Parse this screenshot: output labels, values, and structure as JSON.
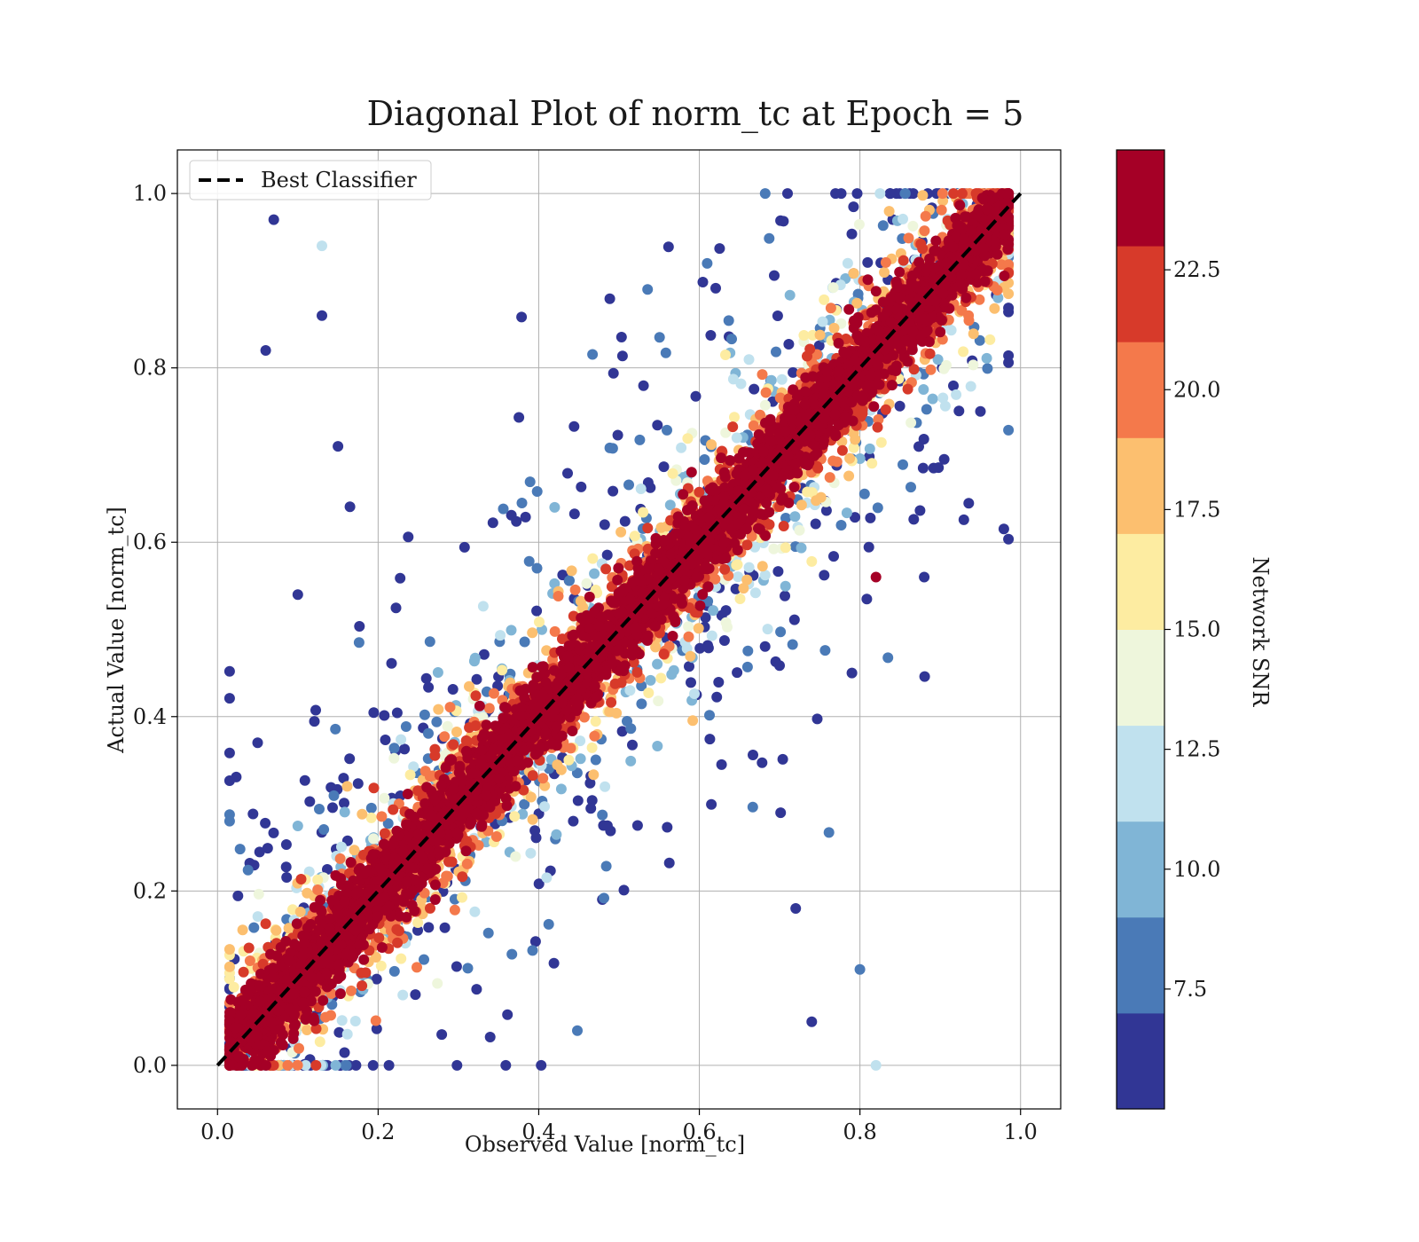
{
  "chart_data": {
    "type": "scatter",
    "title": "Diagonal Plot of norm_tc at Epoch = 5",
    "xlabel": "Observed Value [norm_tc]",
    "ylabel": "Actual Value [norm_tc]",
    "xlim": [
      -0.05,
      1.05
    ],
    "ylim": [
      -0.05,
      1.05
    ],
    "xticks": [
      "0.0",
      "0.2",
      "0.4",
      "0.6",
      "0.8",
      "1.0"
    ],
    "yticks": [
      "0.0",
      "0.2",
      "0.4",
      "0.6",
      "0.8",
      "1.0"
    ],
    "grid": true,
    "legend": {
      "placement": "upper-left",
      "entries": [
        {
          "label": "Best Classifier",
          "style": "dashed",
          "color": "#000000"
        }
      ]
    },
    "reference_line": {
      "x": [
        0.0,
        1.0
      ],
      "y": [
        0.0,
        1.0
      ],
      "style": "dashed",
      "color": "#000000"
    },
    "colorbar": {
      "label": "Network SNR",
      "range": [
        5.0,
        25.0
      ],
      "levels": 10,
      "ticks": [
        "7.5",
        "10.0",
        "12.5",
        "15.0",
        "17.5",
        "20.0",
        "22.5"
      ],
      "tick_values": [
        7.5,
        10.0,
        12.5,
        15.0,
        17.5,
        20.0,
        22.5
      ],
      "colors": [
        "#313695",
        "#4a7ab7",
        "#80b5d6",
        "#c0e1ee",
        "#eef6dc",
        "#fdeca1",
        "#fcbf6f",
        "#f4794b",
        "#d73a2a",
        "#a50026"
      ]
    },
    "points_description": "About 9000 points clustered around the diagonal y = x; high-SNR points lie close to the diagonal, low-SNR points are widely scattered.",
    "scatter_points_sample": [
      {
        "x": 0.07,
        "y": 0.97,
        "snr": 6
      },
      {
        "x": 0.13,
        "y": 0.94,
        "snr": 11
      },
      {
        "x": 0.13,
        "y": 0.86,
        "snr": 6
      },
      {
        "x": 0.06,
        "y": 0.82,
        "snr": 6
      },
      {
        "x": 0.1,
        "y": 0.54,
        "snr": 6
      },
      {
        "x": 0.15,
        "y": 0.71,
        "snr": 6
      },
      {
        "x": 0.82,
        "y": 0.56,
        "snr": 24
      },
      {
        "x": 0.88,
        "y": 0.56,
        "snr": 6
      },
      {
        "x": 0.95,
        "y": 0.75,
        "snr": 6
      },
      {
        "x": 0.8,
        "y": 0.11,
        "snr": 8
      },
      {
        "x": 0.82,
        "y": 0.0,
        "snr": 12
      },
      {
        "x": 0.74,
        "y": 0.05,
        "snr": 6
      },
      {
        "x": 0.72,
        "y": 0.18,
        "snr": 6
      },
      {
        "x": 0.79,
        "y": 0.45,
        "snr": 6
      },
      {
        "x": 0.05,
        "y": 0.37,
        "snr": 6
      },
      {
        "x": 0.3,
        "y": 0.3,
        "snr": 24
      },
      {
        "x": 0.5,
        "y": 0.5,
        "snr": 24
      },
      {
        "x": 0.7,
        "y": 0.7,
        "snr": 24
      },
      {
        "x": 0.9,
        "y": 0.9,
        "snr": 24
      },
      {
        "x": 0.1,
        "y": 0.1,
        "snr": 24
      }
    ]
  }
}
